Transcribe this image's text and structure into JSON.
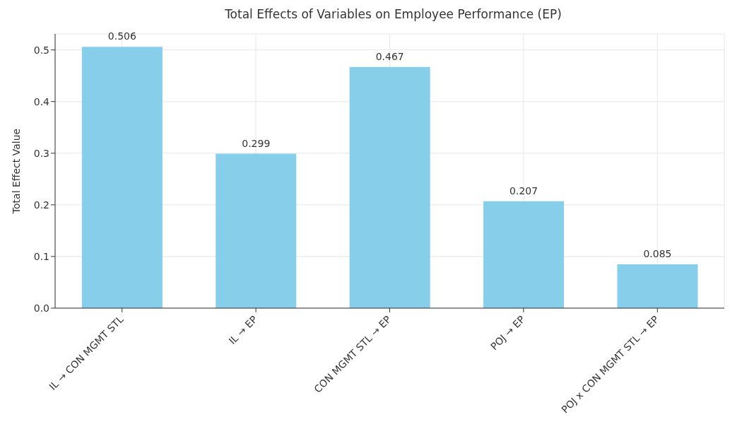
{
  "chart_data": {
    "type": "bar",
    "title": "Total Effects of Variables on Employee Performance (EP)",
    "ylabel": "Total Effect Value",
    "categories": [
      "IL → CON MGMT STL",
      "IL → EP",
      "CON MGMT STL → EP",
      "POJ → EP",
      "POJ x CON MGMT STL → EP"
    ],
    "values": [
      0.506,
      0.299,
      0.467,
      0.207,
      0.085
    ],
    "color": "#87ceeb",
    "ylim": [
      0,
      0.531
    ],
    "yticks": [
      {
        "value": 0,
        "label": "0.0"
      },
      0.1,
      0.2,
      0.3,
      0.4,
      0.5
    ],
    "grid": true,
    "data_labels": true
  }
}
